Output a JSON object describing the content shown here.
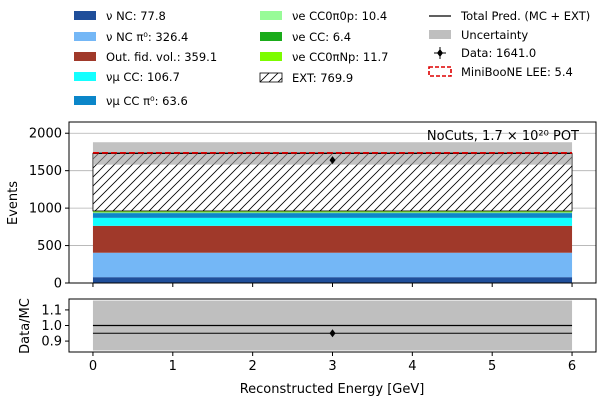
{
  "legend": [
    {
      "label": "ν NC: 77.8",
      "color": "#1f4e9a",
      "kind": "patch"
    },
    {
      "label": "ν NC π⁰: 326.4",
      "color": "#74b7f6",
      "kind": "patch"
    },
    {
      "label": "Out. fid. vol.: 359.1",
      "color": "#a0392a",
      "kind": "patch"
    },
    {
      "label": "νμ CC: 106.7",
      "color": "#14ffff",
      "kind": "patch"
    },
    {
      "label": "νμ CC π⁰: 63.6",
      "color": "#0b86c9",
      "kind": "patch"
    },
    {
      "label": "νe CC0π0p: 10.4",
      "color": "#98fb98",
      "kind": "patch"
    },
    {
      "label": "νe CC: 6.4",
      "color": "#1aab1a",
      "kind": "patch"
    },
    {
      "label": "νe CC0πNp: 11.7",
      "color": "#7cfc00",
      "kind": "patch"
    },
    {
      "label": "EXT: 769.9",
      "color": "#ffffff",
      "kind": "hatch"
    },
    {
      "label": "Total Pred. (MC + EXT)",
      "color": "#000000",
      "kind": "line"
    },
    {
      "label": "Uncertainty",
      "color": "#bfbfbf",
      "kind": "patch"
    },
    {
      "label": "Data: 1641.0",
      "color": "#000000",
      "kind": "marker"
    },
    {
      "label": "MiniBooNE LEE: 5.4",
      "color": "#dd0000",
      "kind": "dashed-box"
    }
  ],
  "annotation": "NoCuts, 1.7 × 10²⁰ POT",
  "main_ylabel": "Events",
  "ratio_ylabel": "Data/MC",
  "xlabel": "Reconstructed Energy [GeV]",
  "chart_data": [
    {
      "type": "bar",
      "stacked": true,
      "x_bin": [
        0,
        6
      ],
      "xlim": [
        -0.3,
        6.3
      ],
      "ylim": [
        0,
        2150
      ],
      "xticks": [
        0,
        1,
        2,
        3,
        4,
        5,
        6
      ],
      "yticks": [
        0,
        500,
        1000,
        1500,
        2000
      ],
      "grid": true,
      "series": [
        {
          "name": "ν NC",
          "value": 77.8,
          "color": "#1f4e9a"
        },
        {
          "name": "ν NC π⁰",
          "value": 326.4,
          "color": "#74b7f6"
        },
        {
          "name": "Out. fid. vol.",
          "value": 359.1,
          "color": "#a0392a"
        },
        {
          "name": "νμ CC",
          "value": 106.7,
          "color": "#14ffff"
        },
        {
          "name": "νμ CC π⁰",
          "value": 63.6,
          "color": "#0b86c9"
        },
        {
          "name": "νe CC0π0p",
          "value": 10.4,
          "color": "#98fb98"
        },
        {
          "name": "νe CC",
          "value": 6.4,
          "color": "#1aab1a"
        },
        {
          "name": "νe CC0πNp",
          "value": 11.7,
          "color": "#7cfc00"
        },
        {
          "name": "EXT",
          "value": 769.9,
          "color": "#ffffff",
          "hatch": true
        }
      ],
      "total_pred": 1731.9,
      "uncertainty": [
        1580,
        1880
      ],
      "lee_top": 1737.3,
      "data": {
        "x": 3,
        "y": 1641.0
      }
    },
    {
      "type": "scatter",
      "xlim": [
        -0.3,
        6.3
      ],
      "ylim": [
        0.83,
        1.17
      ],
      "yticks": [
        0.9,
        1.0,
        1.1
      ],
      "reference_line": 1.0,
      "uncertainty": [
        0.84,
        1.16
      ],
      "points": [
        {
          "x": 3,
          "y": 0.95
        }
      ]
    }
  ]
}
